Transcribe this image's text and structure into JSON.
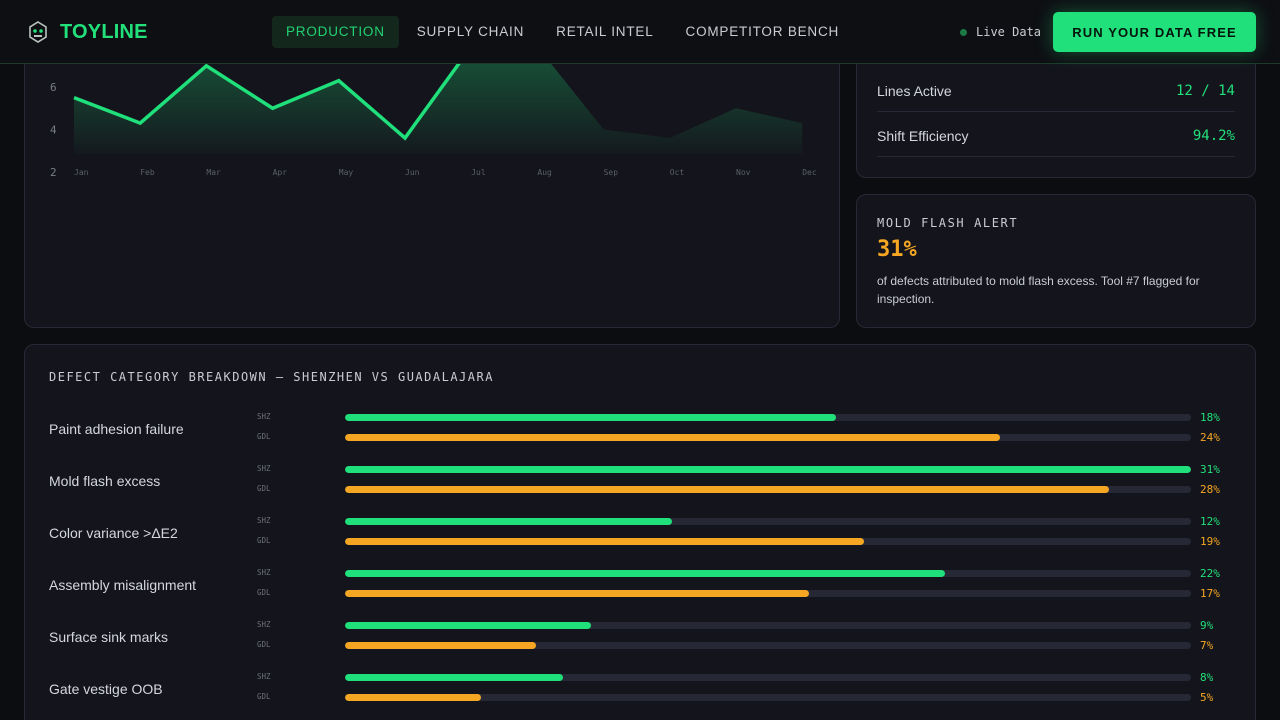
{
  "header": {
    "brand": "TOYLINE",
    "nav": [
      "PRODUCTION",
      "SUPPLY CHAIN",
      "RETAIL INTEL",
      "COMPETITOR BENCH"
    ],
    "active_nav": "PRODUCTION",
    "live_label": "Live Data",
    "cta_label": "RUN YOUR DATA FREE"
  },
  "colors": {
    "accent": "#1fe07a",
    "warning": "#f5a623",
    "panel": "#14151c",
    "background": "#0c0d10"
  },
  "chart_data": {
    "type": "line",
    "categories": [
      "Jan",
      "Feb",
      "Mar",
      "Apr",
      "May",
      "Jun",
      "Jul",
      "Aug",
      "Sep",
      "Oct",
      "Nov",
      "Dec"
    ],
    "series": [
      {
        "values": [
          5.5,
          4.3,
          7.0,
          5.0,
          6.3,
          3.6,
          7.9,
          7.9,
          4.0,
          3.6,
          5.0,
          4.3
        ]
      }
    ],
    "highlighted_through": "Aug",
    "yticks": [
      2,
      4,
      6
    ],
    "ylim": [
      2,
      7.9
    ],
    "grid": false
  },
  "kpis": [
    {
      "label": "Lines Active",
      "value": "12 / 14"
    },
    {
      "label": "Shift Efficiency",
      "value": "94.2%"
    }
  ],
  "alert": {
    "title": "MOLD FLASH ALERT",
    "value": "31%",
    "text": "of defects attributed to mold flash excess. Tool #7 flagged for inspection."
  },
  "defects": {
    "title": "DEFECT CATEGORY BREAKDOWN — SHENZHEN VS GUADALAJARA",
    "max_percent": 31,
    "rows": [
      {
        "name": "Paint adhesion failure",
        "shz": {
          "tag": "SHZ",
          "pct": 18,
          "label": "18%"
        },
        "gdl": {
          "tag": "GDL",
          "pct": 24,
          "label": "24%"
        }
      },
      {
        "name": "Mold flash excess",
        "shz": {
          "tag": "SHZ",
          "pct": 31,
          "label": "31%"
        },
        "gdl": {
          "tag": "GDL",
          "pct": 28,
          "label": "28%"
        }
      },
      {
        "name": "Color variance >ΔE2",
        "shz": {
          "tag": "SHZ",
          "pct": 12,
          "label": "12%"
        },
        "gdl": {
          "tag": "GDL",
          "pct": 19,
          "label": "19%"
        }
      },
      {
        "name": "Assembly misalignment",
        "shz": {
          "tag": "SHZ",
          "pct": 22,
          "label": "22%"
        },
        "gdl": {
          "tag": "GDL",
          "pct": 17,
          "label": "17%"
        }
      },
      {
        "name": "Surface sink marks",
        "shz": {
          "tag": "SHZ",
          "pct": 9,
          "label": "9%"
        },
        "gdl": {
          "tag": "GDL",
          "pct": 7,
          "label": "7%"
        }
      },
      {
        "name": "Gate vestige OOB",
        "shz": {
          "tag": "SHZ",
          "pct": 8,
          "label": "8%"
        },
        "gdl": {
          "tag": "GDL",
          "pct": 5,
          "label": "5%"
        }
      }
    ]
  }
}
